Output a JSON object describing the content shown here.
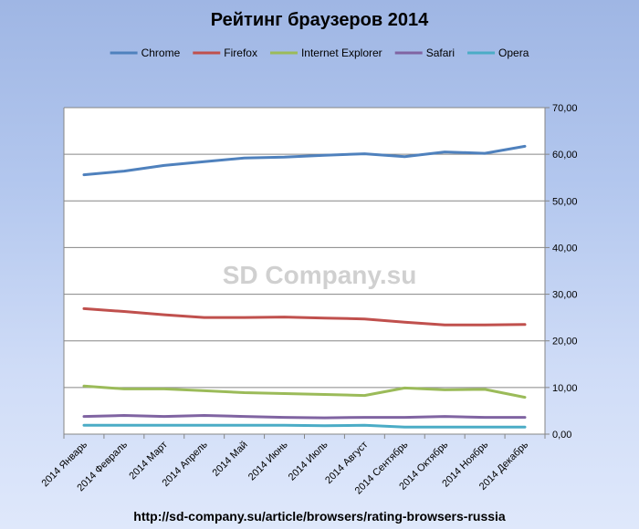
{
  "chart_data": {
    "type": "line",
    "title": "Рейтинг браузеров 2014",
    "categories": [
      "2014 Январь",
      "2014 Февраль",
      "2014 Март",
      "2014 Апрель",
      "2014 Май",
      "2014 Июнь",
      "2014 Июль",
      "2014 Август",
      "2014 Сентябрь",
      "2014 Октябрь",
      "2014 Ноябрь",
      "2014 Декабрь"
    ],
    "series": [
      {
        "name": "Chrome",
        "color": "#4f81bd",
        "values": [
          55.6,
          56.4,
          57.6,
          58.4,
          59.2,
          59.4,
          59.8,
          60.1,
          59.5,
          60.5,
          60.2,
          61.7
        ]
      },
      {
        "name": "Firefox",
        "color": "#c0504d",
        "values": [
          26.9,
          26.3,
          25.6,
          25.0,
          25.0,
          25.1,
          24.9,
          24.7,
          24.0,
          23.4,
          23.4,
          23.5
        ]
      },
      {
        "name": "Internet Explorer",
        "color": "#9bbb59",
        "values": [
          10.3,
          9.7,
          9.7,
          9.3,
          8.9,
          8.7,
          8.5,
          8.3,
          9.9,
          9.5,
          9.6,
          7.9
        ]
      },
      {
        "name": "Safari",
        "color": "#8064a2",
        "values": [
          3.8,
          4.0,
          3.8,
          4.0,
          3.8,
          3.6,
          3.5,
          3.6,
          3.6,
          3.8,
          3.6,
          3.6
        ]
      },
      {
        "name": "Opera",
        "color": "#4bacc6",
        "values": [
          1.9,
          1.9,
          1.9,
          1.9,
          1.9,
          1.9,
          1.8,
          1.9,
          1.5,
          1.5,
          1.5,
          1.5
        ]
      }
    ],
    "yticks": [
      "0,00",
      "10,00",
      "20,00",
      "30,00",
      "40,00",
      "50,00",
      "60,00",
      "70,00"
    ],
    "ylim": [
      0,
      70
    ],
    "grid": true,
    "legend_position": "top",
    "y_axis_side": "right"
  },
  "watermark": "SD Company.su",
  "source_url": "http://sd-company.su/article/browsers/rating-browsers-russia"
}
